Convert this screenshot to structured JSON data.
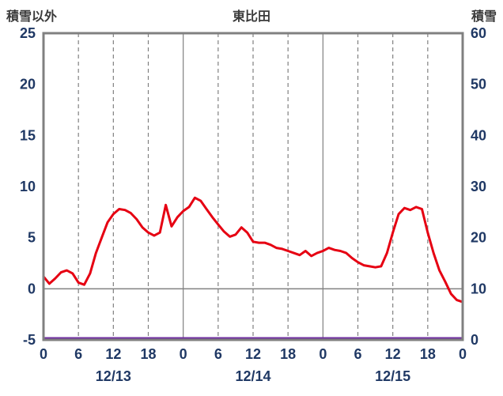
{
  "header": {
    "left_axis_title": "積雪以外",
    "chart_title": "東比田",
    "right_axis_title": "積雪"
  },
  "chart_data": {
    "type": "line",
    "title": "東比田",
    "x_hours_end": 72,
    "x_tick_interval_hours": 6,
    "x_tick_labels": [
      "0",
      "6",
      "12",
      "18",
      "0",
      "6",
      "12",
      "18",
      "0",
      "6",
      "12",
      "18",
      "0"
    ],
    "date_labels": [
      "12/13",
      "12/14",
      "12/15"
    ],
    "left_axis": {
      "title": "積雪以外",
      "min": -5,
      "max": 25,
      "tick_step": 5,
      "ticks": [
        25,
        20,
        15,
        10,
        5,
        0,
        -5
      ]
    },
    "right_axis": {
      "title": "積雪",
      "min": 0,
      "max": 60,
      "tick_step": 10,
      "ticks": [
        60,
        50,
        40,
        30,
        20,
        10,
        0
      ]
    },
    "grid": {
      "vertical_solid_at_day_boundaries": true,
      "vertical_dashed_every_hours": 6,
      "horizontal_solid_line_at_left_value": 0
    },
    "series": [
      {
        "name": "sekisetsu-igai",
        "label": "積雪以外",
        "axis": "left",
        "color": "#e60012",
        "values": [
          1.2,
          0.5,
          1.0,
          1.6,
          1.8,
          1.5,
          0.6,
          0.4,
          1.5,
          3.5,
          5.0,
          6.5,
          7.3,
          7.8,
          7.7,
          7.4,
          6.8,
          6.0,
          5.5,
          5.2,
          5.5,
          8.2,
          6.1,
          7.0,
          7.6,
          8.0,
          8.9,
          8.6,
          7.8,
          7.0,
          6.3,
          5.6,
          5.1,
          5.3,
          6.0,
          5.5,
          4.6,
          4.5,
          4.5,
          4.3,
          4.0,
          3.9,
          3.7,
          3.5,
          3.3,
          3.7,
          3.2,
          3.5,
          3.7,
          4.0,
          3.8,
          3.7,
          3.5,
          3.0,
          2.6,
          2.3,
          2.2,
          2.1,
          2.2,
          3.5,
          5.5,
          7.3,
          7.9,
          7.7,
          8.0,
          7.8,
          5.5,
          3.5,
          1.8,
          0.7,
          -0.5,
          -1.1,
          -1.3
        ]
      },
      {
        "name": "sekisetsu",
        "label": "積雪",
        "axis": "right",
        "color": "#7030a0",
        "values": [
          0,
          0,
          0,
          0,
          0,
          0,
          0,
          0,
          0,
          0,
          0,
          0,
          0,
          0,
          0,
          0,
          0,
          0,
          0,
          0,
          0,
          0,
          0,
          0,
          0,
          0,
          0,
          0,
          0,
          0,
          0,
          0,
          0,
          0,
          0,
          0,
          0,
          0,
          0,
          0,
          0,
          0,
          0,
          0,
          0,
          0,
          0,
          0,
          0,
          0,
          0,
          0,
          0,
          0,
          0,
          0,
          0,
          0,
          0,
          0,
          0,
          0,
          0,
          0,
          0,
          0,
          0,
          0,
          0,
          0,
          0,
          0,
          0
        ]
      }
    ],
    "colors": {
      "frame": "#808080",
      "grid": "#808080",
      "tick_text": "#1f3864",
      "title_text": "#3a3a3a"
    }
  }
}
